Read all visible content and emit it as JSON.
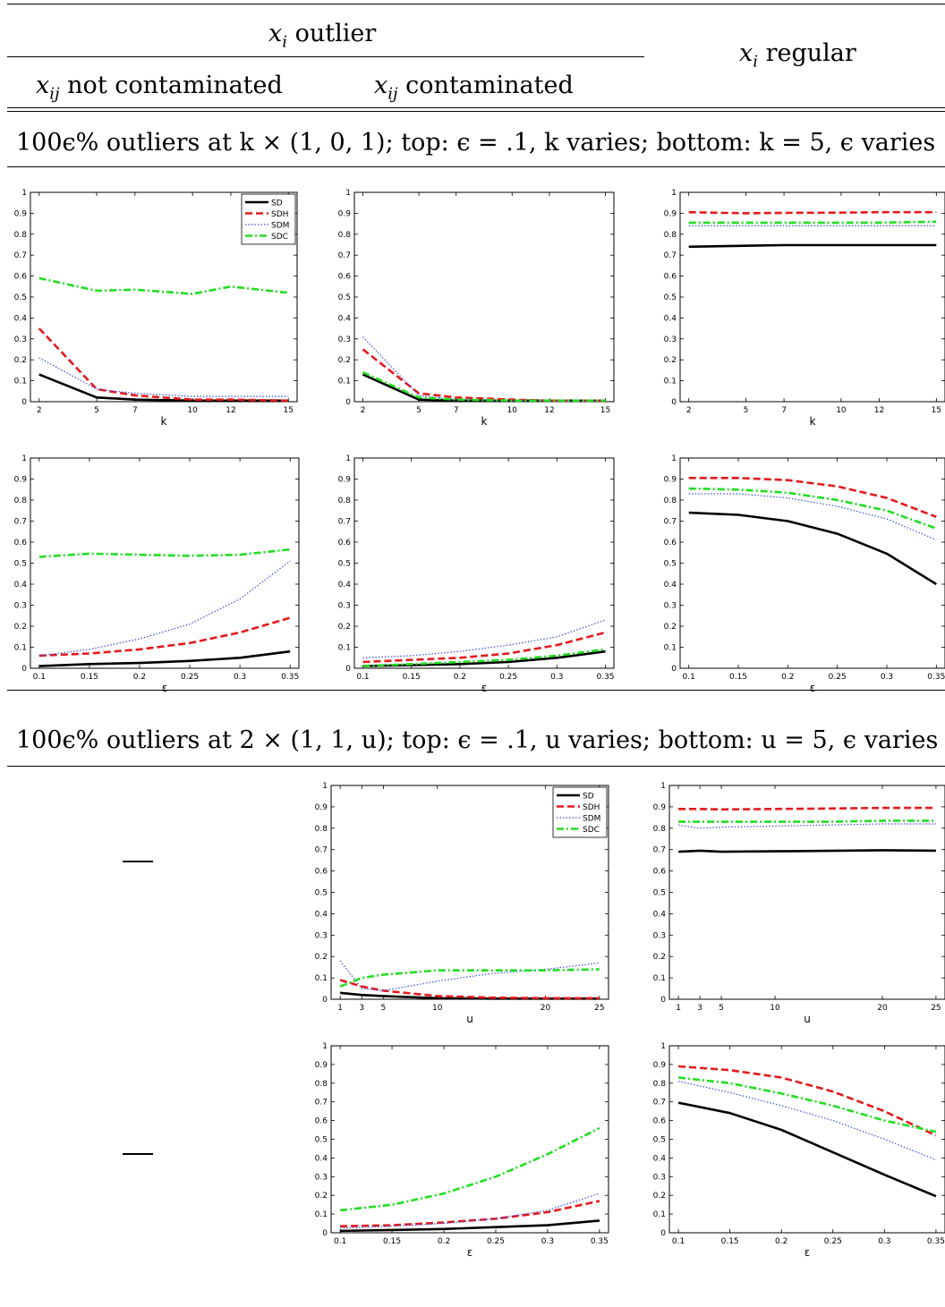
{
  "header": {
    "outlier_group": "outlier",
    "outlier_var": "x",
    "outlier_sub": "i",
    "regular_var": "x",
    "regular_sub": "i",
    "regular_label": "regular",
    "not_cont_var": "x",
    "not_cont_sub": "ij",
    "not_cont_label": "not contaminated",
    "cont_var": "x",
    "cont_sub": "ij",
    "cont_label": "contaminated"
  },
  "sections": [
    {
      "caption": "100ϵ% outliers at k × (1, 0, 1); top: ϵ = .1, k varies; bottom: k = 5, ϵ varies"
    },
    {
      "caption": "100ϵ% outliers at 2 × (1, 1, u); top: ϵ = .1, u varies; bottom: u = 5, ϵ varies"
    }
  ],
  "empty_cell_marks": [
    "—",
    "—"
  ],
  "colors": {
    "SD": "#000000",
    "SDH": "#e41a1c",
    "SDM": "#3b4fd8",
    "SDC": "#22dd22"
  },
  "chart_data": [
    {
      "type": "line",
      "xlabel": "k",
      "ylim": [
        0,
        1
      ],
      "legend": "top-right",
      "x": [
        2,
        5,
        7,
        10,
        12,
        15
      ],
      "xticks": [
        2,
        5,
        7,
        10,
        12,
        15
      ],
      "series": [
        {
          "name": "SD",
          "values": [
            0.13,
            0.02,
            0.01,
            0.005,
            0.005,
            0.005
          ]
        },
        {
          "name": "SDH",
          "values": [
            0.35,
            0.06,
            0.03,
            0.01,
            0.01,
            0.005
          ]
        },
        {
          "name": "SDM",
          "values": [
            0.21,
            0.06,
            0.04,
            0.025,
            0.025,
            0.025
          ]
        },
        {
          "name": "SDC",
          "values": [
            0.59,
            0.53,
            0.535,
            0.515,
            0.55,
            0.52
          ]
        }
      ]
    },
    {
      "type": "line",
      "xlabel": "k",
      "ylim": [
        0,
        1
      ],
      "legend": "none",
      "x": [
        2,
        5,
        7,
        10,
        12,
        15
      ],
      "xticks": [
        2,
        5,
        7,
        10,
        12,
        15
      ],
      "series": [
        {
          "name": "SD",
          "values": [
            0.13,
            0.01,
            0.005,
            0.005,
            0.005,
            0.005
          ]
        },
        {
          "name": "SDH",
          "values": [
            0.25,
            0.04,
            0.02,
            0.01,
            0.005,
            0.005
          ]
        },
        {
          "name": "SDM",
          "values": [
            0.31,
            0.03,
            0.01,
            0.005,
            0.005,
            0.005
          ]
        },
        {
          "name": "SDC",
          "values": [
            0.14,
            0.02,
            0.01,
            0.005,
            0.005,
            0.005
          ]
        }
      ]
    },
    {
      "type": "line",
      "xlabel": "k",
      "ylim": [
        0,
        1
      ],
      "legend": "none",
      "x": [
        2,
        5,
        7,
        10,
        12,
        15
      ],
      "xticks": [
        2,
        5,
        7,
        10,
        12,
        15
      ],
      "series": [
        {
          "name": "SD",
          "values": [
            0.74,
            0.745,
            0.748,
            0.748,
            0.748,
            0.748
          ]
        },
        {
          "name": "SDH",
          "values": [
            0.905,
            0.9,
            0.902,
            0.903,
            0.905,
            0.905
          ]
        },
        {
          "name": "SDM",
          "values": [
            0.84,
            0.84,
            0.84,
            0.84,
            0.84,
            0.84
          ]
        },
        {
          "name": "SDC",
          "values": [
            0.855,
            0.855,
            0.855,
            0.855,
            0.855,
            0.86
          ]
        }
      ]
    },
    {
      "type": "line",
      "xlabel": "ε",
      "ylim": [
        0,
        1
      ],
      "legend": "none",
      "x": [
        0.1,
        0.15,
        0.2,
        0.25,
        0.3,
        0.35
      ],
      "xticks": [
        0.1,
        0.15,
        0.2,
        0.25,
        0.3,
        0.35
      ],
      "series": [
        {
          "name": "SD",
          "values": [
            0.01,
            0.02,
            0.025,
            0.035,
            0.05,
            0.08
          ]
        },
        {
          "name": "SDH",
          "values": [
            0.06,
            0.07,
            0.09,
            0.12,
            0.17,
            0.24
          ]
        },
        {
          "name": "SDM",
          "values": [
            0.06,
            0.09,
            0.14,
            0.21,
            0.33,
            0.51
          ]
        },
        {
          "name": "SDC",
          "values": [
            0.53,
            0.545,
            0.54,
            0.535,
            0.54,
            0.565
          ]
        }
      ]
    },
    {
      "type": "line",
      "xlabel": "ε",
      "ylim": [
        0,
        1
      ],
      "legend": "none",
      "x": [
        0.1,
        0.15,
        0.2,
        0.25,
        0.3,
        0.35
      ],
      "xticks": [
        0.1,
        0.15,
        0.2,
        0.25,
        0.3,
        0.35
      ],
      "series": [
        {
          "name": "SD",
          "values": [
            0.01,
            0.015,
            0.02,
            0.03,
            0.05,
            0.08
          ]
        },
        {
          "name": "SDH",
          "values": [
            0.03,
            0.04,
            0.05,
            0.07,
            0.11,
            0.17
          ]
        },
        {
          "name": "SDM",
          "values": [
            0.05,
            0.06,
            0.08,
            0.11,
            0.15,
            0.23
          ]
        },
        {
          "name": "SDC",
          "values": [
            0.01,
            0.02,
            0.03,
            0.04,
            0.06,
            0.09
          ]
        }
      ]
    },
    {
      "type": "line",
      "xlabel": "ε",
      "ylim": [
        0,
        1
      ],
      "legend": "none",
      "x": [
        0.1,
        0.15,
        0.2,
        0.25,
        0.3,
        0.35
      ],
      "xticks": [
        0.1,
        0.15,
        0.2,
        0.25,
        0.3,
        0.35
      ],
      "series": [
        {
          "name": "SD",
          "values": [
            0.74,
            0.73,
            0.7,
            0.64,
            0.545,
            0.4
          ]
        },
        {
          "name": "SDH",
          "values": [
            0.905,
            0.905,
            0.895,
            0.865,
            0.81,
            0.72
          ]
        },
        {
          "name": "SDM",
          "values": [
            0.83,
            0.83,
            0.81,
            0.77,
            0.71,
            0.61
          ]
        },
        {
          "name": "SDC",
          "values": [
            0.855,
            0.85,
            0.835,
            0.8,
            0.75,
            0.665
          ]
        }
      ]
    },
    {
      "type": "line",
      "xlabel": "u",
      "ylim": [
        0,
        1
      ],
      "legend": "top-right",
      "x": [
        1,
        3,
        5,
        10,
        15,
        20,
        25
      ],
      "xticks": [
        1,
        3,
        5,
        10,
        20,
        25
      ],
      "series": [
        {
          "name": "SD",
          "values": [
            0.03,
            0.02,
            0.015,
            0.005,
            0.003,
            0.003,
            0.003
          ]
        },
        {
          "name": "SDH",
          "values": [
            0.09,
            0.06,
            0.04,
            0.015,
            0.008,
            0.005,
            0.005
          ]
        },
        {
          "name": "SDM",
          "values": [
            0.18,
            0.05,
            0.04,
            0.085,
            0.12,
            0.14,
            0.17
          ]
        },
        {
          "name": "SDC",
          "values": [
            0.06,
            0.1,
            0.115,
            0.135,
            0.135,
            0.135,
            0.14
          ]
        }
      ]
    },
    {
      "type": "line",
      "xlabel": "u",
      "ylim": [
        0,
        1
      ],
      "legend": "none",
      "x": [
        1,
        3,
        5,
        10,
        15,
        20,
        25
      ],
      "xticks": [
        1,
        3,
        5,
        10,
        20,
        25
      ],
      "series": [
        {
          "name": "SD",
          "values": [
            0.69,
            0.695,
            0.69,
            0.692,
            0.694,
            0.697,
            0.695
          ]
        },
        {
          "name": "SDH",
          "values": [
            0.89,
            0.89,
            0.888,
            0.89,
            0.892,
            0.895,
            0.895
          ]
        },
        {
          "name": "SDM",
          "values": [
            0.815,
            0.8,
            0.805,
            0.81,
            0.815,
            0.82,
            0.82
          ]
        },
        {
          "name": "SDC",
          "values": [
            0.83,
            0.83,
            0.83,
            0.83,
            0.83,
            0.835,
            0.835
          ]
        }
      ]
    },
    {
      "type": "line",
      "xlabel": "ε",
      "ylim": [
        0,
        1
      ],
      "legend": "none",
      "x": [
        0.1,
        0.15,
        0.2,
        0.25,
        0.3,
        0.35
      ],
      "xticks": [
        0.1,
        0.15,
        0.2,
        0.25,
        0.3,
        0.35
      ],
      "series": [
        {
          "name": "SD",
          "values": [
            0.01,
            0.015,
            0.02,
            0.03,
            0.04,
            0.065
          ]
        },
        {
          "name": "SDH",
          "values": [
            0.035,
            0.04,
            0.055,
            0.075,
            0.11,
            0.17
          ]
        },
        {
          "name": "SDM",
          "values": [
            0.025,
            0.035,
            0.05,
            0.075,
            0.12,
            0.21
          ]
        },
        {
          "name": "SDC",
          "values": [
            0.12,
            0.15,
            0.21,
            0.3,
            0.42,
            0.56
          ]
        }
      ]
    },
    {
      "type": "line",
      "xlabel": "ε",
      "ylim": [
        0,
        1
      ],
      "legend": "none",
      "x": [
        0.1,
        0.15,
        0.2,
        0.25,
        0.3,
        0.35
      ],
      "xticks": [
        0.1,
        0.15,
        0.2,
        0.25,
        0.3,
        0.35
      ],
      "series": [
        {
          "name": "SD",
          "values": [
            0.695,
            0.64,
            0.55,
            0.43,
            0.31,
            0.195
          ]
        },
        {
          "name": "SDH",
          "values": [
            0.89,
            0.87,
            0.83,
            0.755,
            0.65,
            0.52
          ]
        },
        {
          "name": "SDM",
          "values": [
            0.81,
            0.75,
            0.68,
            0.6,
            0.5,
            0.39
          ]
        },
        {
          "name": "SDC",
          "values": [
            0.83,
            0.8,
            0.745,
            0.68,
            0.6,
            0.54
          ]
        }
      ]
    }
  ]
}
